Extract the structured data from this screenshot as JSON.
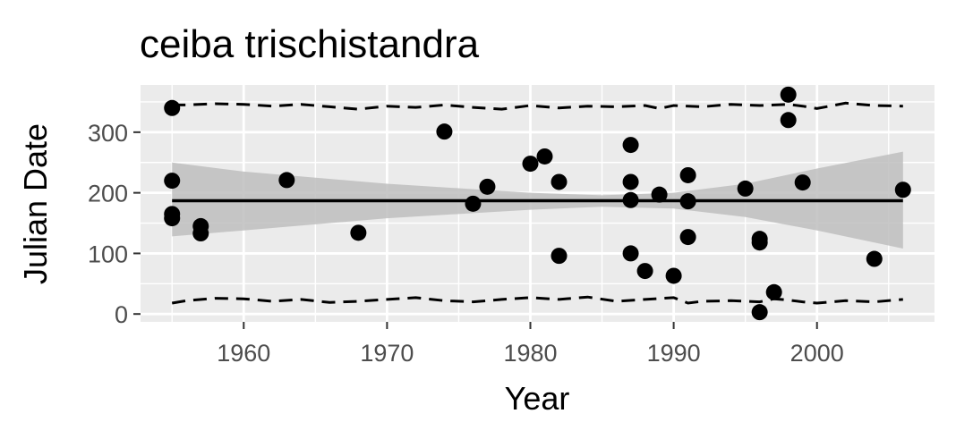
{
  "chart_data": {
    "type": "scatter",
    "title": "ceiba trischistandra",
    "xlabel": "Year",
    "ylabel": "Julian Date",
    "xlim": [
      1952.8,
      2008.2
    ],
    "ylim": [
      -13,
      378
    ],
    "x_ticks": [
      1960,
      1970,
      1980,
      1990,
      2000
    ],
    "y_ticks": [
      0,
      100,
      200,
      300
    ],
    "grid": true,
    "legend": "none",
    "colors": {
      "panel": "#ebebeb",
      "grid": "#ffffff",
      "points": "#000000",
      "ribbon": "#bebebe",
      "tick_text": "#4d4d4d"
    },
    "points": [
      {
        "x": 1955,
        "y": 340
      },
      {
        "x": 1955,
        "y": 220
      },
      {
        "x": 1955,
        "y": 165
      },
      {
        "x": 1955,
        "y": 158
      },
      {
        "x": 1957,
        "y": 145
      },
      {
        "x": 1957,
        "y": 133
      },
      {
        "x": 1963,
        "y": 221
      },
      {
        "x": 1968,
        "y": 134
      },
      {
        "x": 1974,
        "y": 301
      },
      {
        "x": 1976,
        "y": 182
      },
      {
        "x": 1977,
        "y": 210
      },
      {
        "x": 1980,
        "y": 248
      },
      {
        "x": 1981,
        "y": 260
      },
      {
        "x": 1982,
        "y": 218
      },
      {
        "x": 1982,
        "y": 96
      },
      {
        "x": 1987,
        "y": 279
      },
      {
        "x": 1987,
        "y": 218
      },
      {
        "x": 1987,
        "y": 188
      },
      {
        "x": 1987,
        "y": 100
      },
      {
        "x": 1988,
        "y": 71
      },
      {
        "x": 1989,
        "y": 197
      },
      {
        "x": 1990,
        "y": 63
      },
      {
        "x": 1991,
        "y": 229
      },
      {
        "x": 1991,
        "y": 186
      },
      {
        "x": 1991,
        "y": 127
      },
      {
        "x": 1995,
        "y": 207
      },
      {
        "x": 1996,
        "y": 124
      },
      {
        "x": 1996,
        "y": 118
      },
      {
        "x": 1996,
        "y": 3
      },
      {
        "x": 1997,
        "y": 36
      },
      {
        "x": 1998,
        "y": 362
      },
      {
        "x": 1998,
        "y": 320
      },
      {
        "x": 1999,
        "y": 217
      },
      {
        "x": 2004,
        "y": 91
      },
      {
        "x": 2006,
        "y": 205
      }
    ],
    "trend_line": {
      "x": [
        1955,
        2006
      ],
      "y": [
        187,
        187
      ]
    },
    "confidence_band": {
      "x": [
        1955,
        1960,
        1970,
        1980,
        1985,
        1990,
        1995,
        2000,
        2006
      ],
      "upper": [
        250,
        235,
        215,
        200,
        196,
        200,
        215,
        240,
        268
      ],
      "lower": [
        128,
        138,
        158,
        172,
        177,
        174,
        160,
        138,
        108
      ]
    },
    "upper_dashed": {
      "x": [
        1955,
        1956,
        1958,
        1960,
        1962,
        1964,
        1966,
        1968,
        1970,
        1972,
        1974,
        1976,
        1978,
        1980,
        1982,
        1984,
        1986,
        1988,
        1989,
        1990,
        1992,
        1994,
        1996,
        1998,
        1999,
        2000,
        2002,
        2004,
        2006
      ],
      "y": [
        345,
        345,
        347,
        346,
        343,
        346,
        342,
        338,
        343,
        341,
        345,
        341,
        338,
        344,
        340,
        343,
        342,
        344,
        339,
        344,
        342,
        346,
        344,
        346,
        343,
        339,
        348,
        344,
        343
      ]
    },
    "lower_dashed": {
      "x": [
        1955,
        1956,
        1958,
        1960,
        1962,
        1964,
        1966,
        1968,
        1970,
        1972,
        1974,
        1976,
        1978,
        1980,
        1982,
        1984,
        1986,
        1988,
        1990,
        1991,
        1992,
        1994,
        1996,
        1997,
        1998,
        1999,
        2000,
        2002,
        2004,
        2006
      ],
      "y": [
        18,
        22,
        26,
        25,
        21,
        24,
        19,
        21,
        24,
        27,
        22,
        20,
        24,
        27,
        24,
        28,
        21,
        24,
        27,
        18,
        21,
        22,
        20,
        25,
        23,
        20,
        18,
        22,
        20,
        24
      ]
    }
  }
}
